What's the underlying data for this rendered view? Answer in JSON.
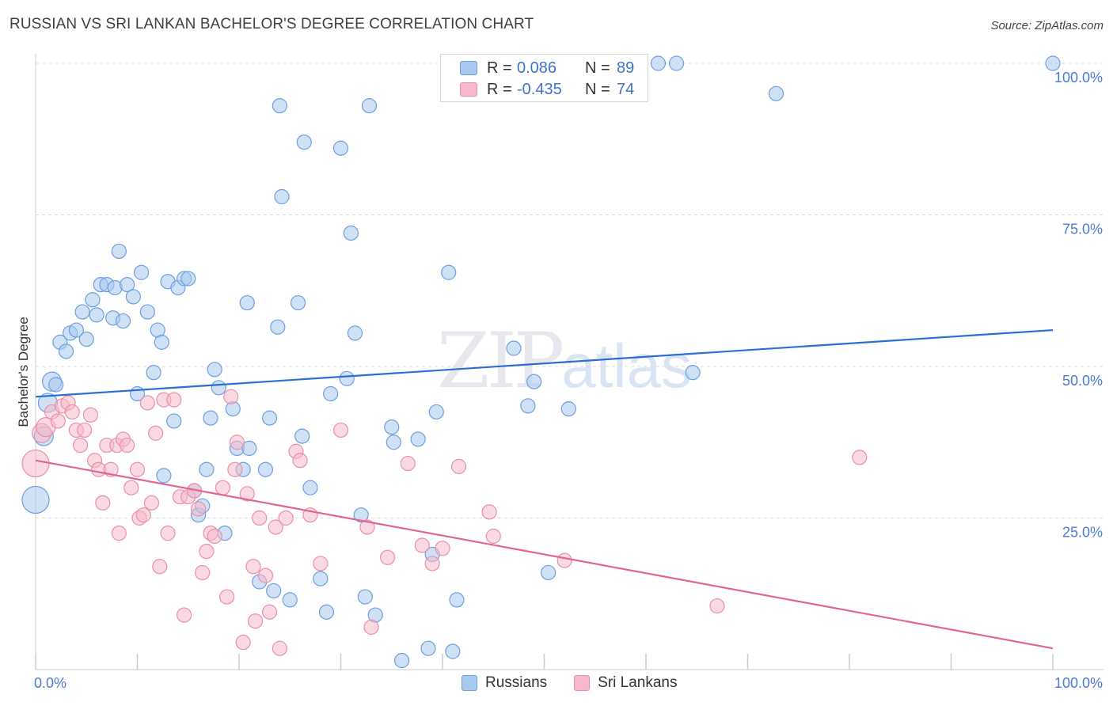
{
  "title": "RUSSIAN VS SRI LANKAN BACHELOR'S DEGREE CORRELATION CHART",
  "source": "Source: ZipAtlas.com",
  "watermark": {
    "zip": "ZIP",
    "atlas": "atlas"
  },
  "legend_top": [
    {
      "r_label": "R =",
      "r_value": "0.086",
      "n_label": "N =",
      "n_value": "89"
    },
    {
      "r_label": "R =",
      "r_value": "-0.435",
      "n_label": "N =",
      "n_value": "74"
    }
  ],
  "legend_bottom": [
    {
      "label": "Russians"
    },
    {
      "label": "Sri Lankans"
    }
  ],
  "colors": {
    "blue_fill": "#a9c8ef",
    "blue_stroke": "#6d9fde",
    "blue_line": "#2a6fcf",
    "pink_fill": "#f5b9cb",
    "pink_stroke": "#e88fab",
    "pink_line": "#e2658f",
    "grid": "#dedede",
    "axis": "#cccccc",
    "tick_label": "#4a7bd0"
  },
  "chart_data": {
    "type": "scatter",
    "title": "RUSSIAN VS SRI LANKAN BACHELOR'S DEGREE CORRELATION CHART",
    "xlabel": "",
    "ylabel": "Bachelor's Degree",
    "xlim": [
      0,
      100
    ],
    "ylim": [
      0,
      100
    ],
    "x_tick_labels": [
      "0.0%",
      "100.0%"
    ],
    "y_ticks": [
      25,
      50,
      75,
      100
    ],
    "y_tick_labels": [
      "25.0%",
      "50.0%",
      "75.0%",
      "100.0%"
    ],
    "series": [
      {
        "name": "Russians",
        "R": 0.086,
        "N": 89,
        "trend": {
          "x": [
            0,
            100
          ],
          "y": [
            45.0,
            56.0
          ]
        },
        "points": [
          [
            0.0,
            28.0,
            3
          ],
          [
            0.8,
            38.5,
            2
          ],
          [
            1.2,
            44.0,
            2
          ],
          [
            1.6,
            47.5,
            2
          ],
          [
            2.0,
            47.0,
            1
          ],
          [
            2.4,
            54.0,
            1
          ],
          [
            3.0,
            52.5,
            1
          ],
          [
            3.4,
            55.5,
            1
          ],
          [
            4.0,
            56.0,
            1
          ],
          [
            5.0,
            54.5,
            1
          ],
          [
            4.6,
            59.0,
            1
          ],
          [
            5.6,
            61.0,
            1
          ],
          [
            6.0,
            58.5,
            1
          ],
          [
            6.4,
            63.5,
            1
          ],
          [
            7.0,
            63.5,
            1
          ],
          [
            7.6,
            58.0,
            1
          ],
          [
            7.8,
            63.0,
            1
          ],
          [
            8.2,
            69.0,
            1
          ],
          [
            8.6,
            57.5,
            1
          ],
          [
            9.0,
            63.5,
            1
          ],
          [
            9.6,
            61.5,
            1
          ],
          [
            10.4,
            65.5,
            1
          ],
          [
            11.0,
            59.0,
            1
          ],
          [
            11.6,
            49.0,
            1
          ],
          [
            12.0,
            56.0,
            1
          ],
          [
            12.4,
            54.0,
            1
          ],
          [
            13.0,
            64.0,
            1
          ],
          [
            14.0,
            63.0,
            1
          ],
          [
            14.6,
            64.5,
            1
          ],
          [
            15.0,
            64.5,
            1
          ],
          [
            10.0,
            45.5,
            1
          ],
          [
            12.6,
            32.0,
            1
          ],
          [
            13.6,
            41.0,
            1
          ],
          [
            15.6,
            29.5,
            1
          ],
          [
            16.0,
            25.5,
            1
          ],
          [
            16.4,
            27.0,
            1
          ],
          [
            16.8,
            33.0,
            1
          ],
          [
            17.2,
            41.5,
            1
          ],
          [
            17.6,
            49.5,
            1
          ],
          [
            18.0,
            46.5,
            1
          ],
          [
            18.6,
            22.5,
            1
          ],
          [
            19.4,
            43.0,
            1
          ],
          [
            19.8,
            36.5,
            1
          ],
          [
            20.4,
            33.0,
            1
          ],
          [
            20.8,
            60.5,
            1
          ],
          [
            21.0,
            36.5,
            1
          ],
          [
            22.0,
            14.5,
            1
          ],
          [
            22.6,
            33.0,
            1
          ],
          [
            23.0,
            41.5,
            1
          ],
          [
            23.4,
            13.0,
            1
          ],
          [
            23.8,
            56.5,
            1
          ],
          [
            24.0,
            93.0,
            1
          ],
          [
            24.2,
            78.0,
            1
          ],
          [
            25.0,
            11.5,
            1
          ],
          [
            25.8,
            60.5,
            1
          ],
          [
            26.2,
            38.5,
            1
          ],
          [
            26.4,
            87.0,
            1
          ],
          [
            27.0,
            30.0,
            1
          ],
          [
            28.0,
            15.0,
            1
          ],
          [
            28.6,
            9.5,
            1
          ],
          [
            29.0,
            45.5,
            1
          ],
          [
            30.0,
            86.0,
            1
          ],
          [
            30.6,
            48.0,
            1
          ],
          [
            31.0,
            72.0,
            1
          ],
          [
            31.4,
            55.5,
            1
          ],
          [
            32.0,
            25.5,
            1
          ],
          [
            32.4,
            12.0,
            1
          ],
          [
            32.8,
            93.0,
            1
          ],
          [
            33.4,
            9.0,
            1
          ],
          [
            35.0,
            40.0,
            1
          ],
          [
            35.2,
            37.5,
            1
          ],
          [
            36.0,
            1.5,
            1
          ],
          [
            37.6,
            38.0,
            1
          ],
          [
            38.6,
            3.5,
            1
          ],
          [
            39.0,
            19.0,
            1
          ],
          [
            39.4,
            42.5,
            1
          ],
          [
            40.6,
            65.5,
            1
          ],
          [
            41.0,
            3.0,
            1
          ],
          [
            41.4,
            11.5,
            1
          ],
          [
            47.0,
            53.0,
            1
          ],
          [
            48.4,
            43.5,
            1
          ],
          [
            49.0,
            47.5,
            1
          ],
          [
            50.4,
            16.0,
            1
          ],
          [
            52.4,
            43.0,
            1
          ],
          [
            61.2,
            100.0,
            1
          ],
          [
            63.0,
            100.0,
            1
          ],
          [
            64.6,
            49.0,
            1
          ],
          [
            72.8,
            95.0,
            1
          ],
          [
            100.0,
            100.0,
            1
          ]
        ]
      },
      {
        "name": "Sri Lankans",
        "R": -0.435,
        "N": 74,
        "trend": {
          "x": [
            0,
            100
          ],
          "y": [
            34.5,
            3.5
          ]
        },
        "points": [
          [
            0.0,
            34.0,
            3
          ],
          [
            0.6,
            39.0,
            2
          ],
          [
            1.0,
            40.0,
            2
          ],
          [
            1.6,
            42.5,
            1
          ],
          [
            2.2,
            41.0,
            1
          ],
          [
            2.6,
            43.5,
            1
          ],
          [
            3.2,
            44.0,
            1
          ],
          [
            3.6,
            42.5,
            1
          ],
          [
            4.0,
            39.5,
            1
          ],
          [
            4.4,
            37.0,
            1
          ],
          [
            4.8,
            39.5,
            1
          ],
          [
            5.4,
            42.0,
            1
          ],
          [
            5.8,
            34.5,
            1
          ],
          [
            6.2,
            33.0,
            1
          ],
          [
            6.6,
            27.5,
            1
          ],
          [
            7.0,
            37.0,
            1
          ],
          [
            7.4,
            33.0,
            1
          ],
          [
            8.0,
            37.0,
            1
          ],
          [
            8.2,
            22.5,
            1
          ],
          [
            8.6,
            38.0,
            1
          ],
          [
            9.0,
            37.0,
            1
          ],
          [
            9.4,
            30.0,
            1
          ],
          [
            10.0,
            33.0,
            1
          ],
          [
            10.2,
            25.0,
            1
          ],
          [
            10.6,
            25.5,
            1
          ],
          [
            11.0,
            44.0,
            1
          ],
          [
            11.4,
            27.5,
            1
          ],
          [
            11.8,
            39.0,
            1
          ],
          [
            12.2,
            17.0,
            1
          ],
          [
            12.6,
            44.5,
            1
          ],
          [
            13.0,
            22.5,
            1
          ],
          [
            13.6,
            44.5,
            1
          ],
          [
            14.2,
            28.5,
            1
          ],
          [
            14.6,
            9.0,
            1
          ],
          [
            15.0,
            28.5,
            1
          ],
          [
            15.6,
            29.5,
            1
          ],
          [
            16.0,
            26.5,
            1
          ],
          [
            16.4,
            16.0,
            1
          ],
          [
            16.8,
            19.5,
            1
          ],
          [
            17.2,
            22.5,
            1
          ],
          [
            17.6,
            22.0,
            1
          ],
          [
            18.4,
            30.0,
            1
          ],
          [
            18.8,
            12.0,
            1
          ],
          [
            19.2,
            45.0,
            1
          ],
          [
            19.6,
            33.0,
            1
          ],
          [
            19.8,
            37.5,
            1
          ],
          [
            20.4,
            4.5,
            1
          ],
          [
            20.8,
            29.0,
            1
          ],
          [
            21.4,
            17.0,
            1
          ],
          [
            21.6,
            8.0,
            1
          ],
          [
            22.0,
            25.0,
            1
          ],
          [
            22.6,
            15.5,
            1
          ],
          [
            23.0,
            9.5,
            1
          ],
          [
            23.6,
            23.5,
            1
          ],
          [
            24.0,
            3.5,
            1
          ],
          [
            24.6,
            25.0,
            1
          ],
          [
            25.6,
            36.0,
            1
          ],
          [
            26.0,
            34.5,
            1
          ],
          [
            27.0,
            25.5,
            1
          ],
          [
            28.0,
            17.5,
            1
          ],
          [
            30.0,
            39.5,
            1
          ],
          [
            32.6,
            23.5,
            1
          ],
          [
            33.0,
            7.0,
            1
          ],
          [
            34.6,
            18.5,
            1
          ],
          [
            36.6,
            34.0,
            1
          ],
          [
            38.0,
            20.5,
            1
          ],
          [
            39.0,
            17.5,
            1
          ],
          [
            40.0,
            20.0,
            1
          ],
          [
            41.6,
            33.5,
            1
          ],
          [
            44.6,
            26.0,
            1
          ],
          [
            45.0,
            22.0,
            1
          ],
          [
            52.0,
            18.0,
            1
          ],
          [
            67.0,
            10.5,
            1
          ],
          [
            81.0,
            35.0,
            1
          ]
        ]
      }
    ]
  }
}
